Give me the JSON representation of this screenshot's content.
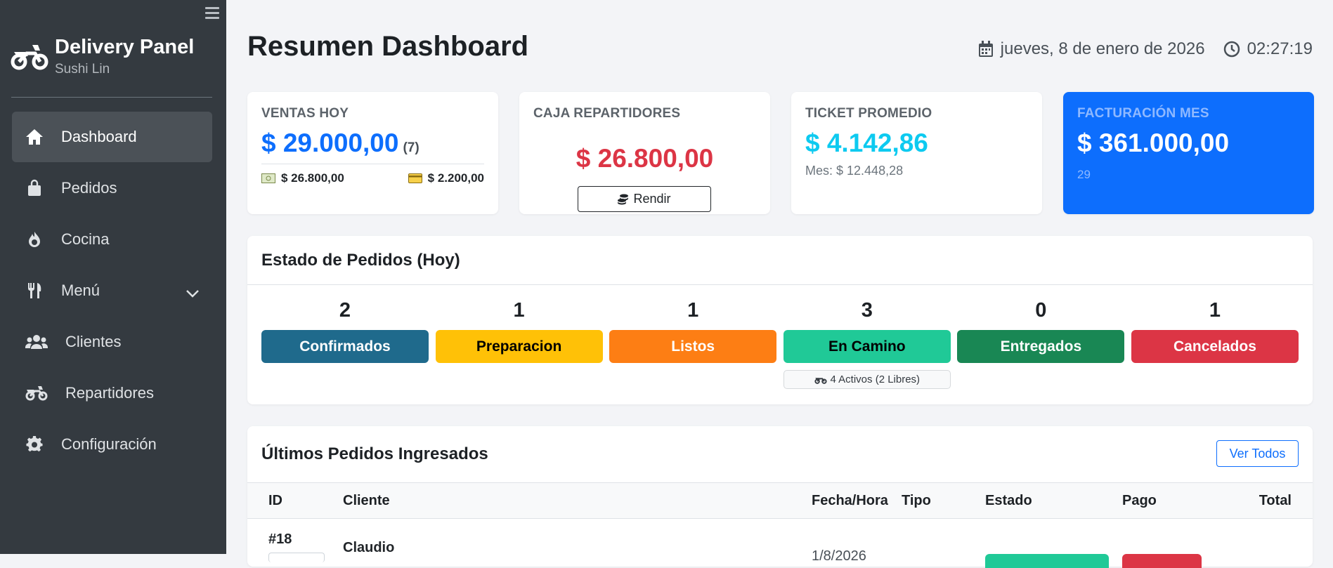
{
  "sidebar": {
    "brand_title": "Delivery Panel",
    "brand_subtitle": "Sushi Lin",
    "items": [
      {
        "label": "Dashboard",
        "icon": "home-icon",
        "active": true
      },
      {
        "label": "Pedidos",
        "icon": "bag-icon"
      },
      {
        "label": "Cocina",
        "icon": "fire-icon"
      },
      {
        "label": "Menú",
        "icon": "utensils-icon",
        "has_submenu": true
      },
      {
        "label": "Clientes",
        "icon": "users-icon"
      },
      {
        "label": "Repartidores",
        "icon": "motorcycle-icon"
      },
      {
        "label": "Configuración",
        "icon": "gear-icon"
      }
    ]
  },
  "header": {
    "title": "Resumen Dashboard",
    "date": "jueves, 8 de enero de 2026",
    "time": "02:27:19"
  },
  "kpis": {
    "ventas": {
      "label": "VENTAS HOY",
      "value": "$ 29.000,00",
      "count": "(7)",
      "cash": "$ 26.800,00",
      "card": "$ 2.200,00"
    },
    "caja": {
      "label": "CAJA REPARTIDORES",
      "value": "$ 26.800,00",
      "button": "Rendir"
    },
    "ticket": {
      "label": "TICKET PROMEDIO",
      "value": "$ 4.142,86",
      "sub": "Mes: $ 12.448,28"
    },
    "facturacion": {
      "label": "FACTURACIÓN MES",
      "value": "$ 361.000,00",
      "sub": "29"
    }
  },
  "estado": {
    "title": "Estado de Pedidos (Hoy)",
    "statuses": [
      {
        "count": "2",
        "label": "Confirmados",
        "color": "#1f6a8c",
        "text_color": "#ffffff"
      },
      {
        "count": "1",
        "label": "Preparacion",
        "color": "#ffc107",
        "text_color": "#000000"
      },
      {
        "count": "1",
        "label": "Listos",
        "color": "#fd7e14",
        "text_color": "#ffffff"
      },
      {
        "count": "3",
        "label": "En Camino",
        "color": "#20c997",
        "text_color": "#000000"
      },
      {
        "count": "0",
        "label": "Entregados",
        "color": "#198754",
        "text_color": "#ffffff"
      },
      {
        "count": "1",
        "label": "Cancelados",
        "color": "#dc3545",
        "text_color": "#ffffff"
      }
    ],
    "riders_badge": "4 Activos (2 Libres)"
  },
  "orders": {
    "title": "Últimos Pedidos Ingresados",
    "ver_todos": "Ver Todos",
    "columns": [
      "ID",
      "Cliente",
      "Fecha/Hora",
      "Tipo",
      "Estado",
      "Pago",
      "Total"
    ],
    "rows": [
      {
        "id": "#18",
        "cliente": "Claudio",
        "fecha": "1/8/2026"
      }
    ]
  },
  "colors": {
    "sidebar_bg": "#343a40",
    "primary": "#0d6efd",
    "danger": "#dc3545",
    "info": "#0dcaf0"
  }
}
